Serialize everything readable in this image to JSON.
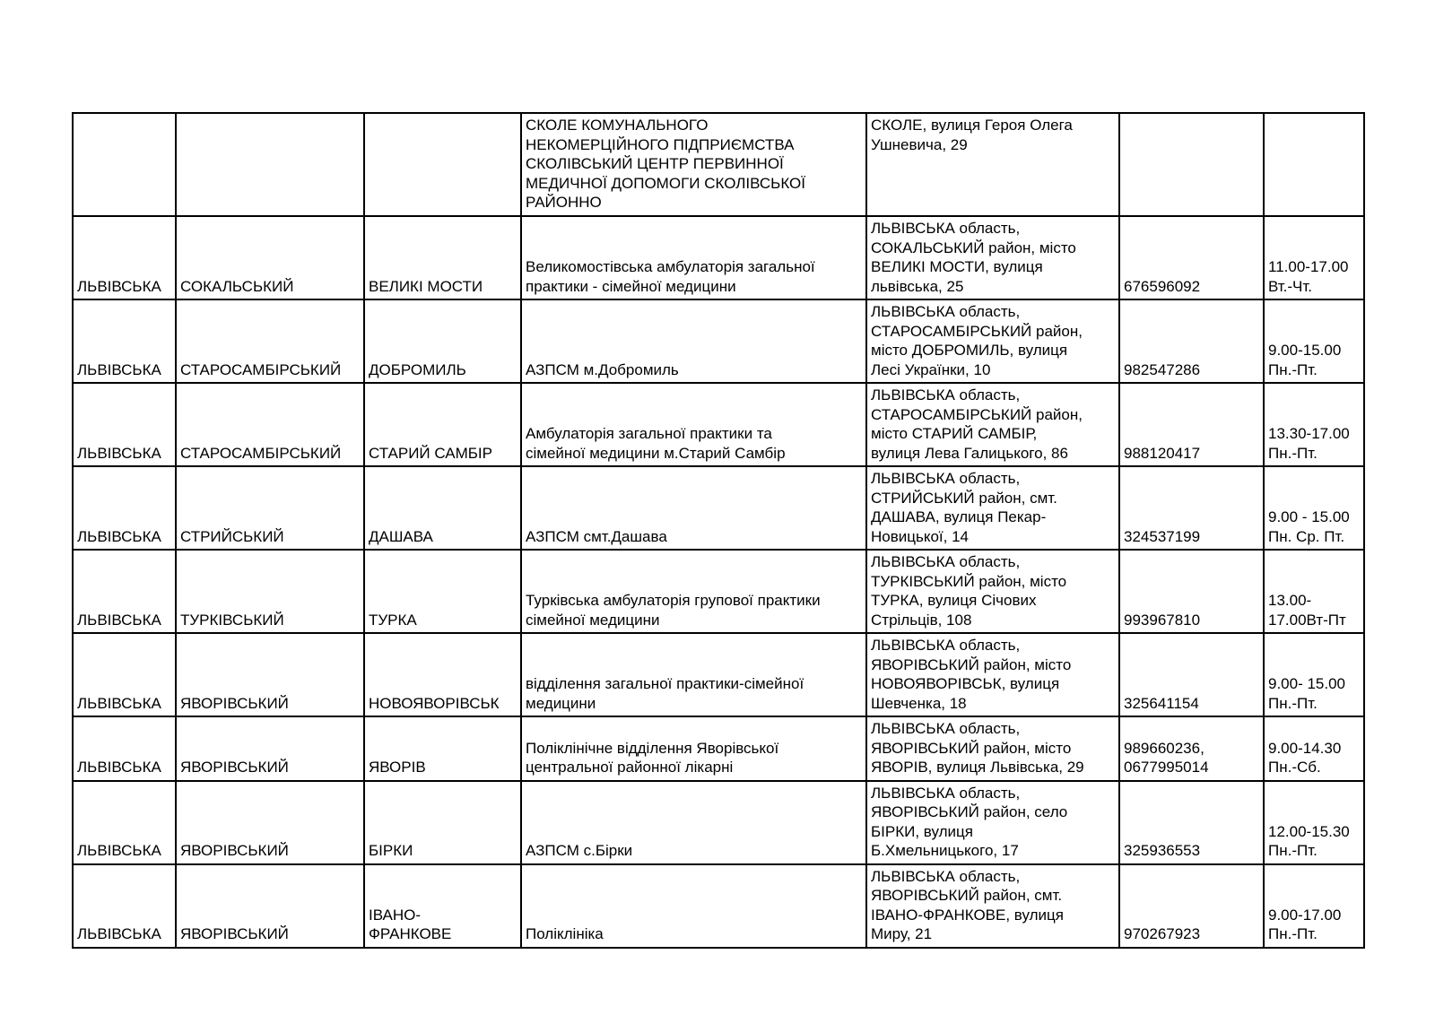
{
  "table": {
    "columns": [
      "region",
      "district",
      "settlement",
      "facility",
      "address",
      "phone",
      "hours"
    ],
    "rows": [
      {
        "region": "",
        "district": "",
        "settlement": "",
        "facility": "СКОЛЕ КОМУНАЛЬНОГО\nНЕКОМЕРЦІЙНОГО ПІДПРИЄМСТВА\nСКОЛІВСЬКИЙ ЦЕНТР ПЕРВИННОЇ\nМЕДИЧНОЇ ДОПОМОГИ СКОЛІВСЬКОЇ\nРАЙОННО",
        "address": "СКОЛЕ, вулиця Героя Олега\nУшневича, 29",
        "phone": "",
        "hours": ""
      },
      {
        "region": "ЛЬВІВСЬКА",
        "district": "СОКАЛЬСЬКИЙ",
        "settlement": "ВЕЛИКІ МОСТИ",
        "facility": "Великомостівська амбулаторія загальної\nпрактики - сімейної медицини",
        "address": "ЛЬВІВСЬКА область,\nСОКАЛЬСЬКИЙ район, місто\nВЕЛИКІ МОСТИ, вулиця\nльвівська, 25",
        "phone": "676596092",
        "hours": "11.00-17.00\nВт.-Чт."
      },
      {
        "region": "ЛЬВІВСЬКА",
        "district": "СТАРОСАМБІРСЬКИЙ",
        "settlement": "ДОБРОМИЛЬ",
        "facility": "АЗПСМ м.Добромиль",
        "address": "ЛЬВІВСЬКА область,\nСТАРОСАМБІРСЬКИЙ район,\nмісто ДОБРОМИЛЬ, вулиця\nЛесі Українки, 10",
        "phone": "982547286",
        "hours": "9.00-15.00\nПн.-Пт."
      },
      {
        "region": "ЛЬВІВСЬКА",
        "district": "СТАРОСАМБІРСЬКИЙ",
        "settlement": "СТАРИЙ САМБІР",
        "facility": "Амбулаторія загальної практики та\nсімейної медицини м.Старий Самбір",
        "address": "ЛЬВІВСЬКА область,\nСТАРОСАМБІРСЬКИЙ район,\nмісто СТАРИЙ САМБІР,\nвулиця Лева Галицького, 86",
        "phone": "988120417",
        "hours": "13.30-17.00\nПн.-Пт."
      },
      {
        "region": "ЛЬВІВСЬКА",
        "district": "СТРИЙСЬКИЙ",
        "settlement": "ДАШАВА",
        "facility": "АЗПСМ смт.Дашава",
        "address": "ЛЬВІВСЬКА область,\nСТРИЙСЬКИЙ район, смт.\nДАШАВА, вулиця Пекар-\nНовицької, 14",
        "phone": "324537199",
        "hours": "9.00 - 15.00\nПн. Ср. Пт."
      },
      {
        "region": "ЛЬВІВСЬКА",
        "district": "ТУРКІВСЬКИЙ",
        "settlement": "ТУРКА",
        "facility": "Турківська амбулаторія групової практики\nсімейної медицини",
        "address": "ЛЬВІВСЬКА область,\nТУРКІВСЬКИЙ район, місто\nТУРКА, вулиця Січових\nСтрільців, 108",
        "phone": "993967810",
        "hours": "13.00-\n17.00Вт-Пт"
      },
      {
        "region": "ЛЬВІВСЬКА",
        "district": "ЯВОРІВСЬКИЙ",
        "settlement": "НОВОЯВОРІВСЬК",
        "facility": "відділення загальної практики-сімейної\nмедицини",
        "address": "ЛЬВІВСЬКА область,\nЯВОРІВСЬКИЙ район, місто\nНОВОЯВОРІВСЬК, вулиця\nШевченка, 18",
        "phone": "325641154",
        "hours": "9.00- 15.00\nПн.-Пт."
      },
      {
        "region": "ЛЬВІВСЬКА",
        "district": "ЯВОРІВСЬКИЙ",
        "settlement": "ЯВОРІВ",
        "facility": "Поліклінічне відділення Яворівської\nцентральної районної лікарні",
        "address": "ЛЬВІВСЬКА область,\nЯВОРІВСЬКИЙ район, місто\nЯВОРІВ, вулиця Львівська, 29",
        "phone": "989660236,\n0677995014",
        "hours": "9.00-14.30\nПн.-Сб."
      },
      {
        "region": "ЛЬВІВСЬКА",
        "district": "ЯВОРІВСЬКИЙ",
        "settlement": "БІРКИ",
        "facility": "АЗПСМ с.Бірки",
        "address": "ЛЬВІВСЬКА область,\nЯВОРІВСЬКИЙ район, село\nБІРКИ, вулиця\nБ.Хмельницького, 17",
        "phone": "325936553",
        "hours": "12.00-15.30\nПн.-Пт."
      },
      {
        "region": "ЛЬВІВСЬКА",
        "district": "ЯВОРІВСЬКИЙ",
        "settlement": "ІВАНО-\nФРАНКОВЕ",
        "facility": "Поліклініка",
        "address": "ЛЬВІВСЬКА область,\nЯВОРІВСЬКИЙ район, смт.\nІВАНО-ФРАНКОВЕ, вулиця\nМиру, 21",
        "phone": "970267923",
        "hours": "9.00-17.00\nПн.-Пт."
      }
    ]
  }
}
